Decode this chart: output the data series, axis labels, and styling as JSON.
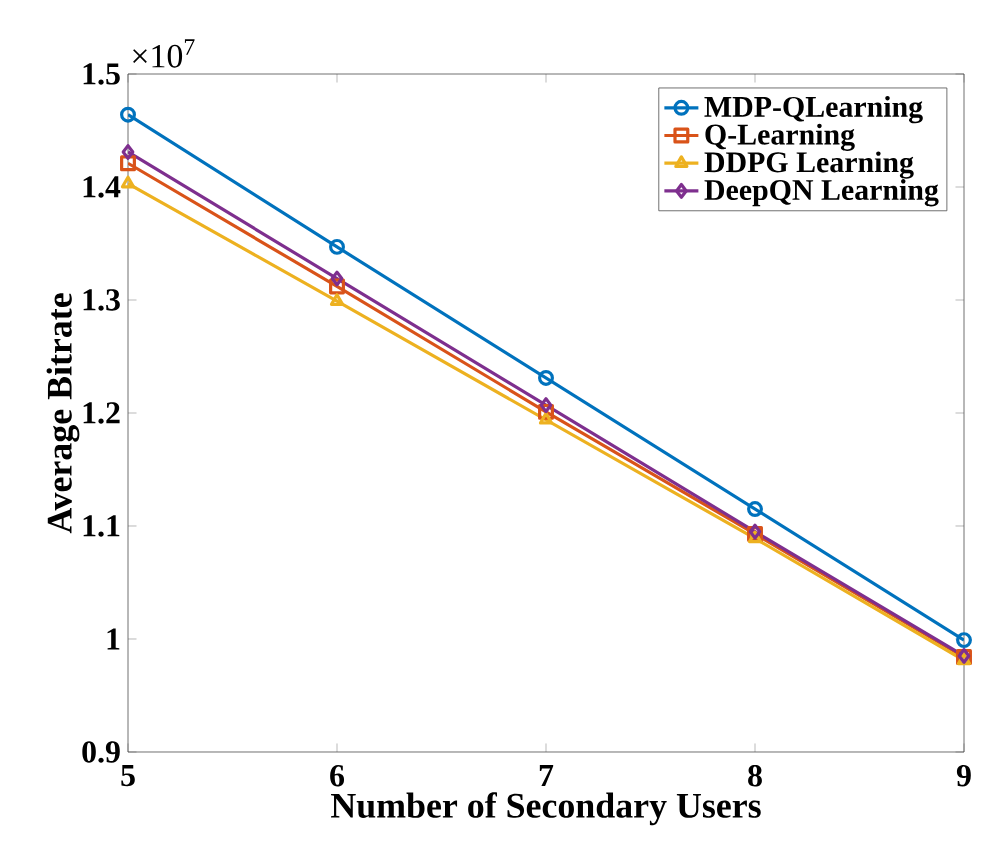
{
  "chart_data": {
    "type": "line",
    "xlabel": "Number of Secondary Users",
    "ylabel": "Average Bitrate",
    "annotations": [
      "×10$^{7}$"
    ],
    "x": [
      5,
      6,
      7,
      8,
      9
    ],
    "series": [
      {
        "name": "MDP-QLearning",
        "color": "#0072bd",
        "marker": "circle",
        "values": [
          1.464,
          1.347,
          1.231,
          1.115,
          0.999
        ]
      },
      {
        "name": "Q-Learning",
        "color": "#d95319",
        "marker": "square",
        "values": [
          1.421,
          1.312,
          1.201,
          1.093,
          0.984
        ]
      },
      {
        "name": "DDPG Learning",
        "color": "#edb120",
        "marker": "triangle",
        "values": [
          1.403,
          1.299,
          1.194,
          1.089,
          0.981
        ]
      },
      {
        "name": "DeepQN Learning",
        "color": "#7e2f8e",
        "marker": "diamond",
        "values": [
          1.431,
          1.319,
          1.207,
          1.095,
          0.985
        ]
      }
    ],
    "xlim": [
      5,
      9
    ],
    "ylim": [
      0.9,
      1.5
    ],
    "xticks": [
      5,
      6,
      7,
      8,
      9
    ],
    "yticks": [
      0.9,
      1,
      1.1,
      1.2,
      1.3,
      1.4,
      1.5
    ],
    "grid": false,
    "legend": "top right",
    "line_style": "solid"
  }
}
